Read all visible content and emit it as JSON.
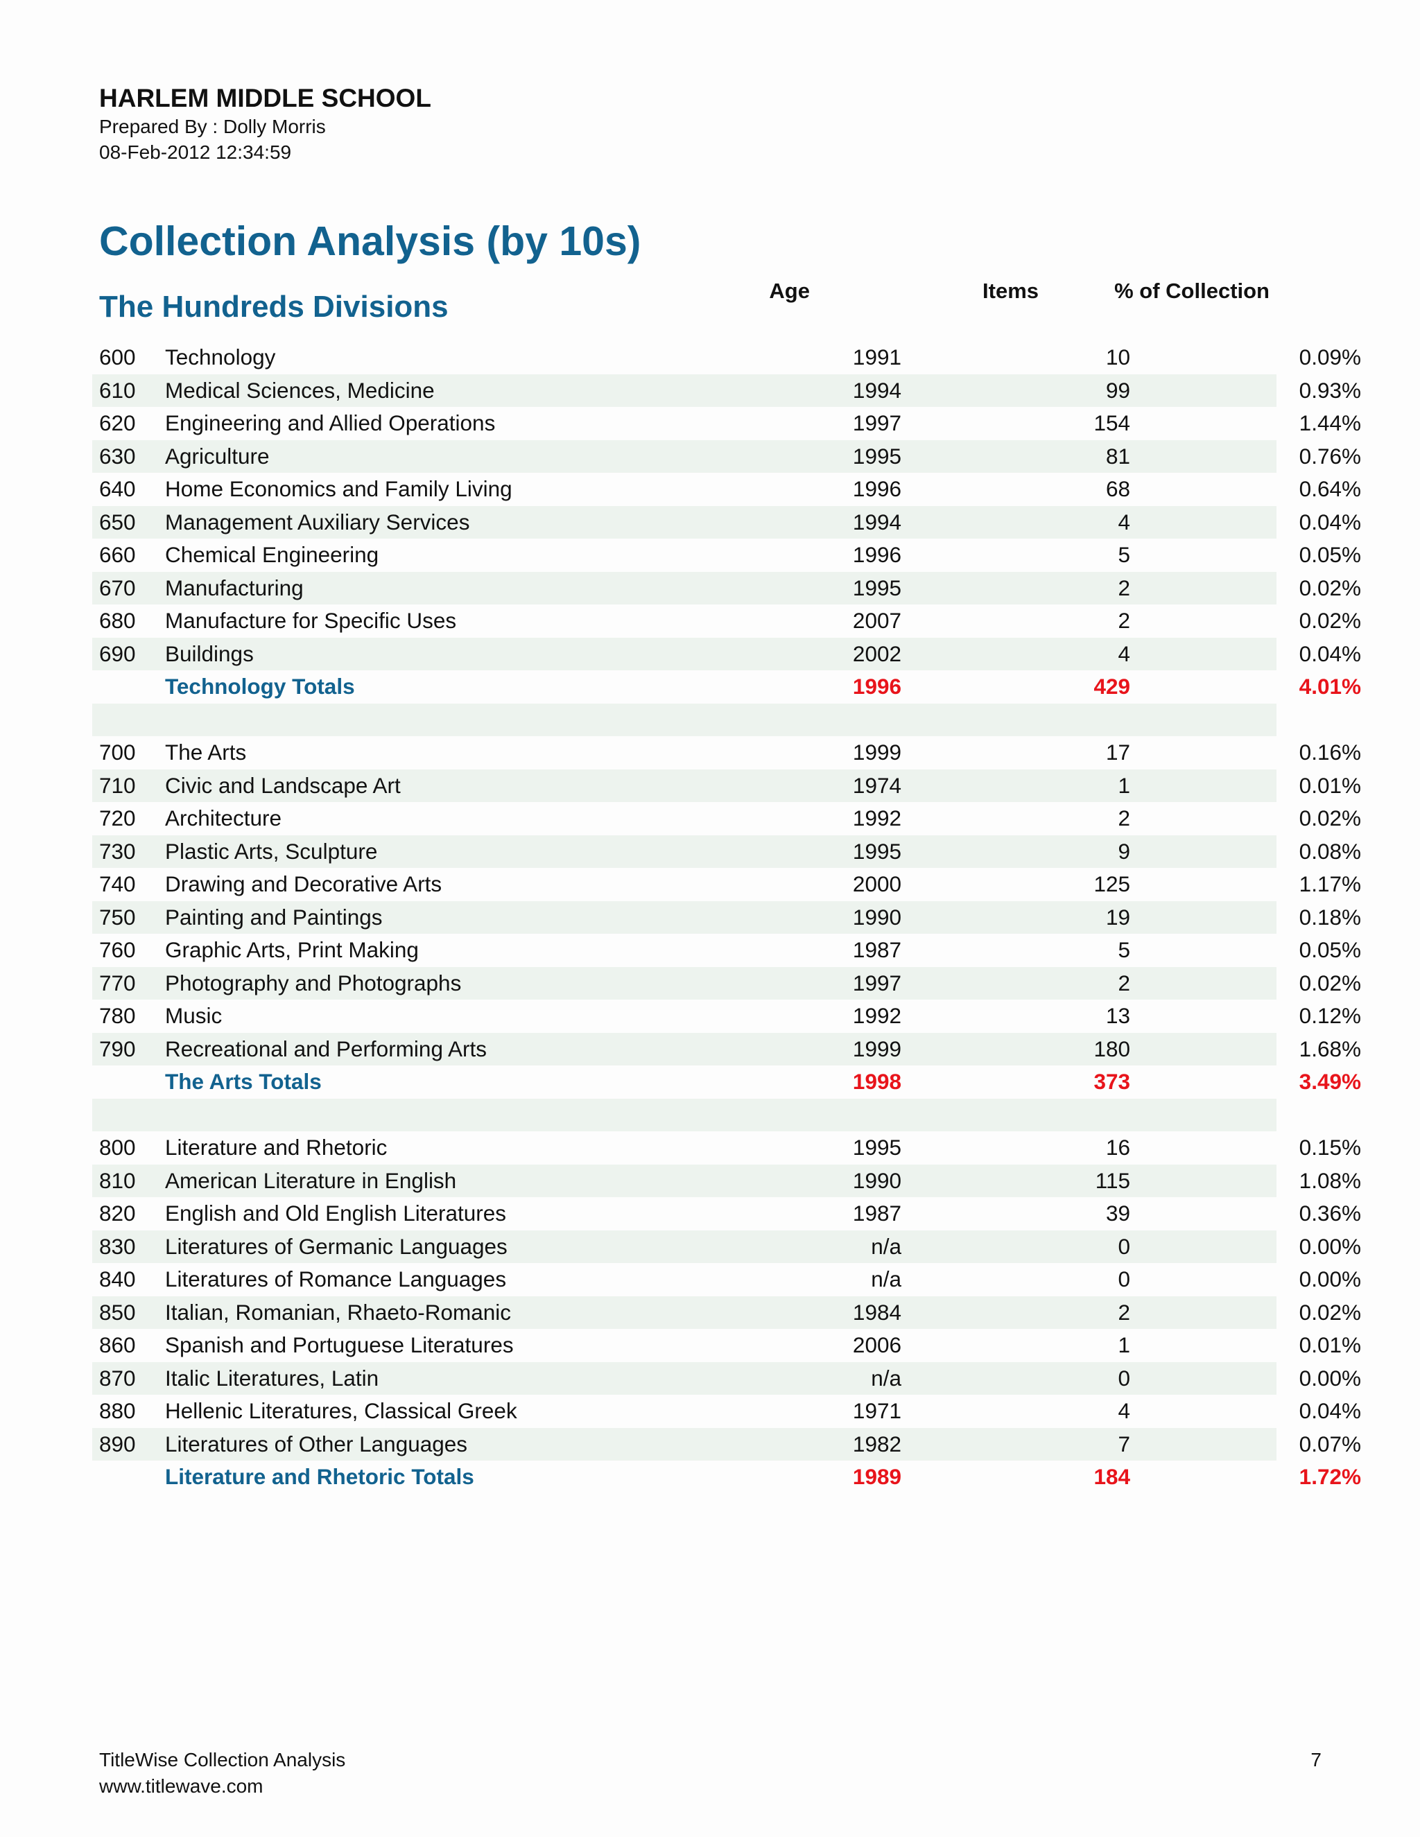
{
  "header": {
    "school": "HARLEM MIDDLE SCHOOL",
    "prepared_by": "Prepared By : Dolly Morris",
    "datetime": "08-Feb-2012 12:34:59"
  },
  "title": "Collection Analysis (by 10s)",
  "subtitle": "The Hundreds Divisions",
  "columns": {
    "age": "Age",
    "items": "Items",
    "pct": "% of Collection"
  },
  "rows": [
    {
      "code": "600",
      "name": "Technology",
      "age": "1991",
      "items": "10",
      "pct": "0.09%"
    },
    {
      "code": "610",
      "name": "Medical Sciences, Medicine",
      "age": "1994",
      "items": "99",
      "pct": "0.93%"
    },
    {
      "code": "620",
      "name": "Engineering and Allied Operations",
      "age": "1997",
      "items": "154",
      "pct": "1.44%"
    },
    {
      "code": "630",
      "name": "Agriculture",
      "age": "1995",
      "items": "81",
      "pct": "0.76%"
    },
    {
      "code": "640",
      "name": "Home Economics and Family Living",
      "age": "1996",
      "items": "68",
      "pct": "0.64%"
    },
    {
      "code": "650",
      "name": "Management Auxiliary Services",
      "age": "1994",
      "items": "4",
      "pct": "0.04%"
    },
    {
      "code": "660",
      "name": "Chemical Engineering",
      "age": "1996",
      "items": "5",
      "pct": "0.05%"
    },
    {
      "code": "670",
      "name": "Manufacturing",
      "age": "1995",
      "items": "2",
      "pct": "0.02%"
    },
    {
      "code": "680",
      "name": "Manufacture for Specific Uses",
      "age": "2007",
      "items": "2",
      "pct": "0.02%"
    },
    {
      "code": "690",
      "name": "Buildings",
      "age": "2002",
      "items": "4",
      "pct": "0.04%"
    },
    {
      "total": true,
      "code": "",
      "name": "Technology Totals",
      "age": "1996",
      "items": "429",
      "pct": "4.01%"
    },
    {
      "gap": true
    },
    {
      "code": "700",
      "name": "The Arts",
      "age": "1999",
      "items": "17",
      "pct": "0.16%"
    },
    {
      "code": "710",
      "name": "Civic and Landscape Art",
      "age": "1974",
      "items": "1",
      "pct": "0.01%"
    },
    {
      "code": "720",
      "name": "Architecture",
      "age": "1992",
      "items": "2",
      "pct": "0.02%"
    },
    {
      "code": "730",
      "name": "Plastic Arts, Sculpture",
      "age": "1995",
      "items": "9",
      "pct": "0.08%"
    },
    {
      "code": "740",
      "name": "Drawing and Decorative Arts",
      "age": "2000",
      "items": "125",
      "pct": "1.17%"
    },
    {
      "code": "750",
      "name": "Painting and Paintings",
      "age": "1990",
      "items": "19",
      "pct": "0.18%"
    },
    {
      "code": "760",
      "name": "Graphic Arts, Print Making",
      "age": "1987",
      "items": "5",
      "pct": "0.05%"
    },
    {
      "code": "770",
      "name": "Photography and Photographs",
      "age": "1997",
      "items": "2",
      "pct": "0.02%"
    },
    {
      "code": "780",
      "name": "Music",
      "age": "1992",
      "items": "13",
      "pct": "0.12%"
    },
    {
      "code": "790",
      "name": "Recreational and Performing Arts",
      "age": "1999",
      "items": "180",
      "pct": "1.68%"
    },
    {
      "total": true,
      "code": "",
      "name": "The Arts Totals",
      "age": "1998",
      "items": "373",
      "pct": "3.49%"
    },
    {
      "gap": true
    },
    {
      "code": "800",
      "name": "Literature and Rhetoric",
      "age": "1995",
      "items": "16",
      "pct": "0.15%"
    },
    {
      "code": "810",
      "name": "American Literature in English",
      "age": "1990",
      "items": "115",
      "pct": "1.08%"
    },
    {
      "code": "820",
      "name": "English and Old English Literatures",
      "age": "1987",
      "items": "39",
      "pct": "0.36%"
    },
    {
      "code": "830",
      "name": "Literatures of Germanic Languages",
      "age": "n/a",
      "items": "0",
      "pct": "0.00%"
    },
    {
      "code": "840",
      "name": "Literatures of Romance Languages",
      "age": "n/a",
      "items": "0",
      "pct": "0.00%"
    },
    {
      "code": "850",
      "name": "Italian, Romanian, Rhaeto-Romanic",
      "age": "1984",
      "items": "2",
      "pct": "0.02%"
    },
    {
      "code": "860",
      "name": "Spanish and Portuguese Literatures",
      "age": "2006",
      "items": "1",
      "pct": "0.01%"
    },
    {
      "code": "870",
      "name": "Italic Literatures, Latin",
      "age": "n/a",
      "items": "0",
      "pct": "0.00%"
    },
    {
      "code": "880",
      "name": "Hellenic Literatures, Classical Greek",
      "age": "1971",
      "items": "4",
      "pct": "0.04%"
    },
    {
      "code": "890",
      "name": "Literatures of Other Languages",
      "age": "1982",
      "items": "7",
      "pct": "0.07%"
    },
    {
      "total": true,
      "code": "",
      "name": "Literature and Rhetoric Totals",
      "age": "1989",
      "items": "184",
      "pct": "1.72%"
    }
  ],
  "footer": {
    "product": "TitleWise Collection Analysis",
    "url": "www.titlewave.com",
    "page": "7"
  }
}
